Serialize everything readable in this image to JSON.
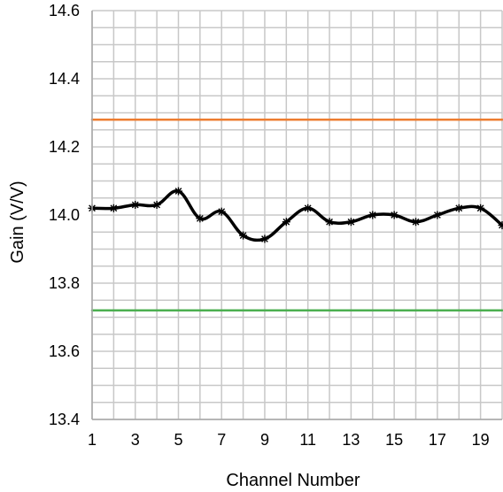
{
  "chart_data": {
    "type": "line",
    "title": "",
    "xlabel": "Channel Number",
    "ylabel": "Gain (V/V)",
    "xlim": [
      1,
      20
    ],
    "ylim": [
      13.4,
      14.6
    ],
    "x_ticks": [
      1,
      3,
      5,
      7,
      9,
      11,
      13,
      15,
      17,
      19
    ],
    "y_ticks": [
      "13.4",
      "13.6",
      "13.8",
      "14.0",
      "14.2",
      "14.4",
      "14.6"
    ],
    "grid": true,
    "legend": "none",
    "series": [
      {
        "color": "#000000",
        "markers": true,
        "x": [
          1,
          2,
          3,
          4,
          5,
          6,
          7,
          8,
          9,
          10,
          11,
          12,
          13,
          14,
          15,
          16,
          17,
          18,
          19,
          20
        ],
        "values": [
          14.02,
          14.02,
          14.03,
          14.03,
          14.07,
          13.99,
          14.01,
          13.94,
          13.93,
          13.98,
          14.02,
          13.98,
          13.98,
          14.0,
          14.0,
          13.98,
          14.0,
          14.02,
          14.02,
          13.97
        ]
      },
      {
        "color": "#ed7d31",
        "markers": false,
        "x": [
          1,
          20
        ],
        "values": [
          14.28,
          14.28
        ]
      },
      {
        "color": "#4caf50",
        "markers": false,
        "x": [
          1,
          20
        ],
        "values": [
          13.72,
          13.72
        ]
      }
    ]
  }
}
